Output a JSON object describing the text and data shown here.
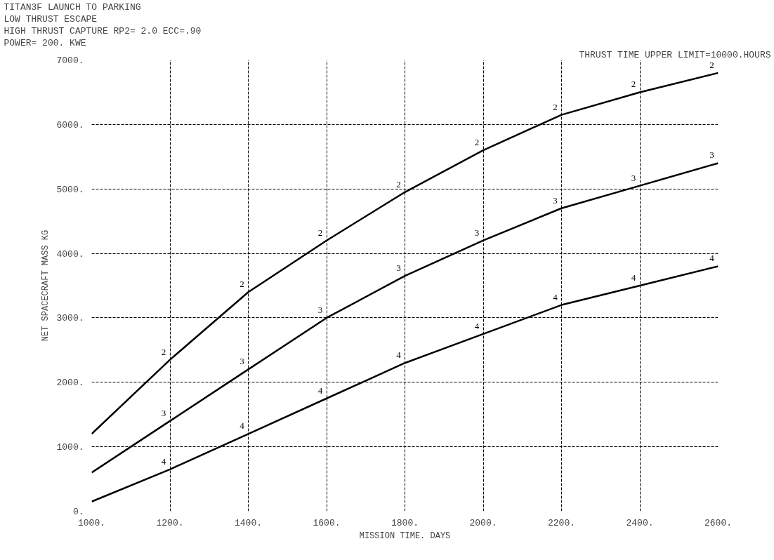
{
  "chart_data": {
    "type": "line",
    "title": "TITAN3F          LAUNCH TO  PARKING",
    "annotations": [
      "LOW   THRUST ESCAPE",
      "HIGH  THRUST CAPTURE   RP2=  2.0  ECC=.90",
      "POWER= 200. KWE",
      "THRUST TIME UPPER LIMIT=10000.HOURS"
    ],
    "xlabel": "MISSION TIME. DAYS",
    "ylabel": "NET SPACECRAFT MASS KG",
    "x": [
      1000,
      1200,
      1400,
      1600,
      1800,
      2000,
      2200,
      2400,
      2600
    ],
    "series": [
      {
        "name": "2",
        "color": "#000000",
        "values": [
          1200,
          2350,
          3400,
          4200,
          4950,
          5600,
          6150,
          6500,
          6800
        ]
      },
      {
        "name": "3",
        "color": "#000000",
        "values": [
          600,
          1400,
          2200,
          3000,
          3650,
          4200,
          4700,
          5050,
          5400
        ]
      },
      {
        "name": "4",
        "color": "#000000",
        "values": [
          150,
          650,
          1200,
          1750,
          2300,
          2750,
          3200,
          3500,
          3800
        ]
      }
    ],
    "xlim": [
      1000,
      2600
    ],
    "ylim": [
      0,
      7000
    ],
    "xticks": [
      {
        "value": 1000,
        "label": "1000."
      },
      {
        "value": 1200,
        "label": "1200."
      },
      {
        "value": 1400,
        "label": "1400."
      },
      {
        "value": 1600,
        "label": "1600."
      },
      {
        "value": 1800,
        "label": "1800."
      },
      {
        "value": 2000,
        "label": "2000."
      },
      {
        "value": 2200,
        "label": "2200."
      },
      {
        "value": 2400,
        "label": "2400."
      },
      {
        "value": 2600,
        "label": "2600."
      }
    ],
    "yticks": [
      {
        "value": 0,
        "label": "0."
      },
      {
        "value": 1000,
        "label": "1000."
      },
      {
        "value": 2000,
        "label": "2000."
      },
      {
        "value": 3000,
        "label": "3000."
      },
      {
        "value": 4000,
        "label": "4000."
      },
      {
        "value": 5000,
        "label": "5000."
      },
      {
        "value": 6000,
        "label": "6000."
      },
      {
        "value": 7000,
        "label": "7000."
      }
    ],
    "grid": true,
    "line_style": "solid"
  }
}
